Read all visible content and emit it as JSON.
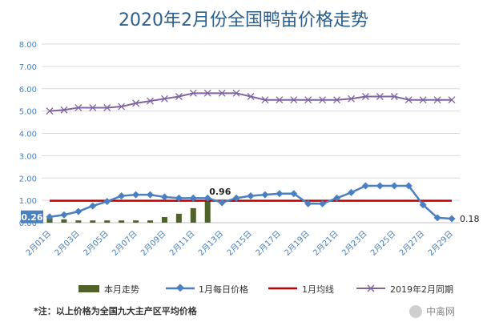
{
  "chart_data": {
    "type": "line",
    "title": "2020年2月份全国鸭苗价格走势",
    "ylim": [
      0,
      8
    ],
    "yticks": [
      "0.00",
      "1.00",
      "2.00",
      "3.00",
      "4.00",
      "5.00",
      "6.00",
      "7.00",
      "8.00"
    ],
    "x_labels": [
      "2月01日",
      "2月03日",
      "2月05日",
      "2月07日",
      "2月09日",
      "2月11日",
      "2月13日",
      "2月15日",
      "2月17日",
      "2月19日",
      "2月21日",
      "2月23日",
      "2月25日",
      "2月27日",
      "2月29日"
    ],
    "days": 29,
    "grid": true,
    "legend_position": "bottom",
    "series": [
      {
        "name": "本月走势",
        "type": "bar",
        "color": "#4f6228",
        "values": [
          0.26,
          0.15,
          0.1,
          0.1,
          0.1,
          0.1,
          0.1,
          0.1,
          0.25,
          0.4,
          0.65,
          0.96
        ]
      },
      {
        "name": "1月每日价格",
        "type": "line",
        "color": "#4a7fc1",
        "marker": "diamond",
        "values": [
          0.26,
          0.35,
          0.5,
          0.75,
          0.95,
          1.2,
          1.25,
          1.25,
          1.15,
          1.1,
          1.1,
          1.1,
          0.9,
          1.1,
          1.2,
          1.25,
          1.3,
          1.3,
          0.85,
          0.85,
          1.1,
          1.35,
          1.65,
          1.65,
          1.65,
          1.65,
          0.8,
          0.22,
          0.18
        ]
      },
      {
        "name": "1月均线",
        "type": "line",
        "color": "#c00000",
        "value": 0.98
      },
      {
        "name": "2019年2月同期",
        "type": "line",
        "color": "#8064a2",
        "marker": "x",
        "values": [
          5.0,
          5.05,
          5.15,
          5.15,
          5.15,
          5.2,
          5.35,
          5.45,
          5.55,
          5.65,
          5.8,
          5.8,
          5.8,
          5.8,
          5.65,
          5.5,
          5.5,
          5.5,
          5.5,
          5.5,
          5.5,
          5.55,
          5.65,
          5.65,
          5.65,
          5.5,
          5.5,
          5.5,
          5.5
        ]
      }
    ],
    "annotations": [
      {
        "label": "0.26"
      },
      {
        "label": "0.96"
      },
      {
        "label": "0.18"
      }
    ]
  },
  "footnote": "*注：以上价格为全国九大主产区平均价格",
  "watermark": "中禽网"
}
